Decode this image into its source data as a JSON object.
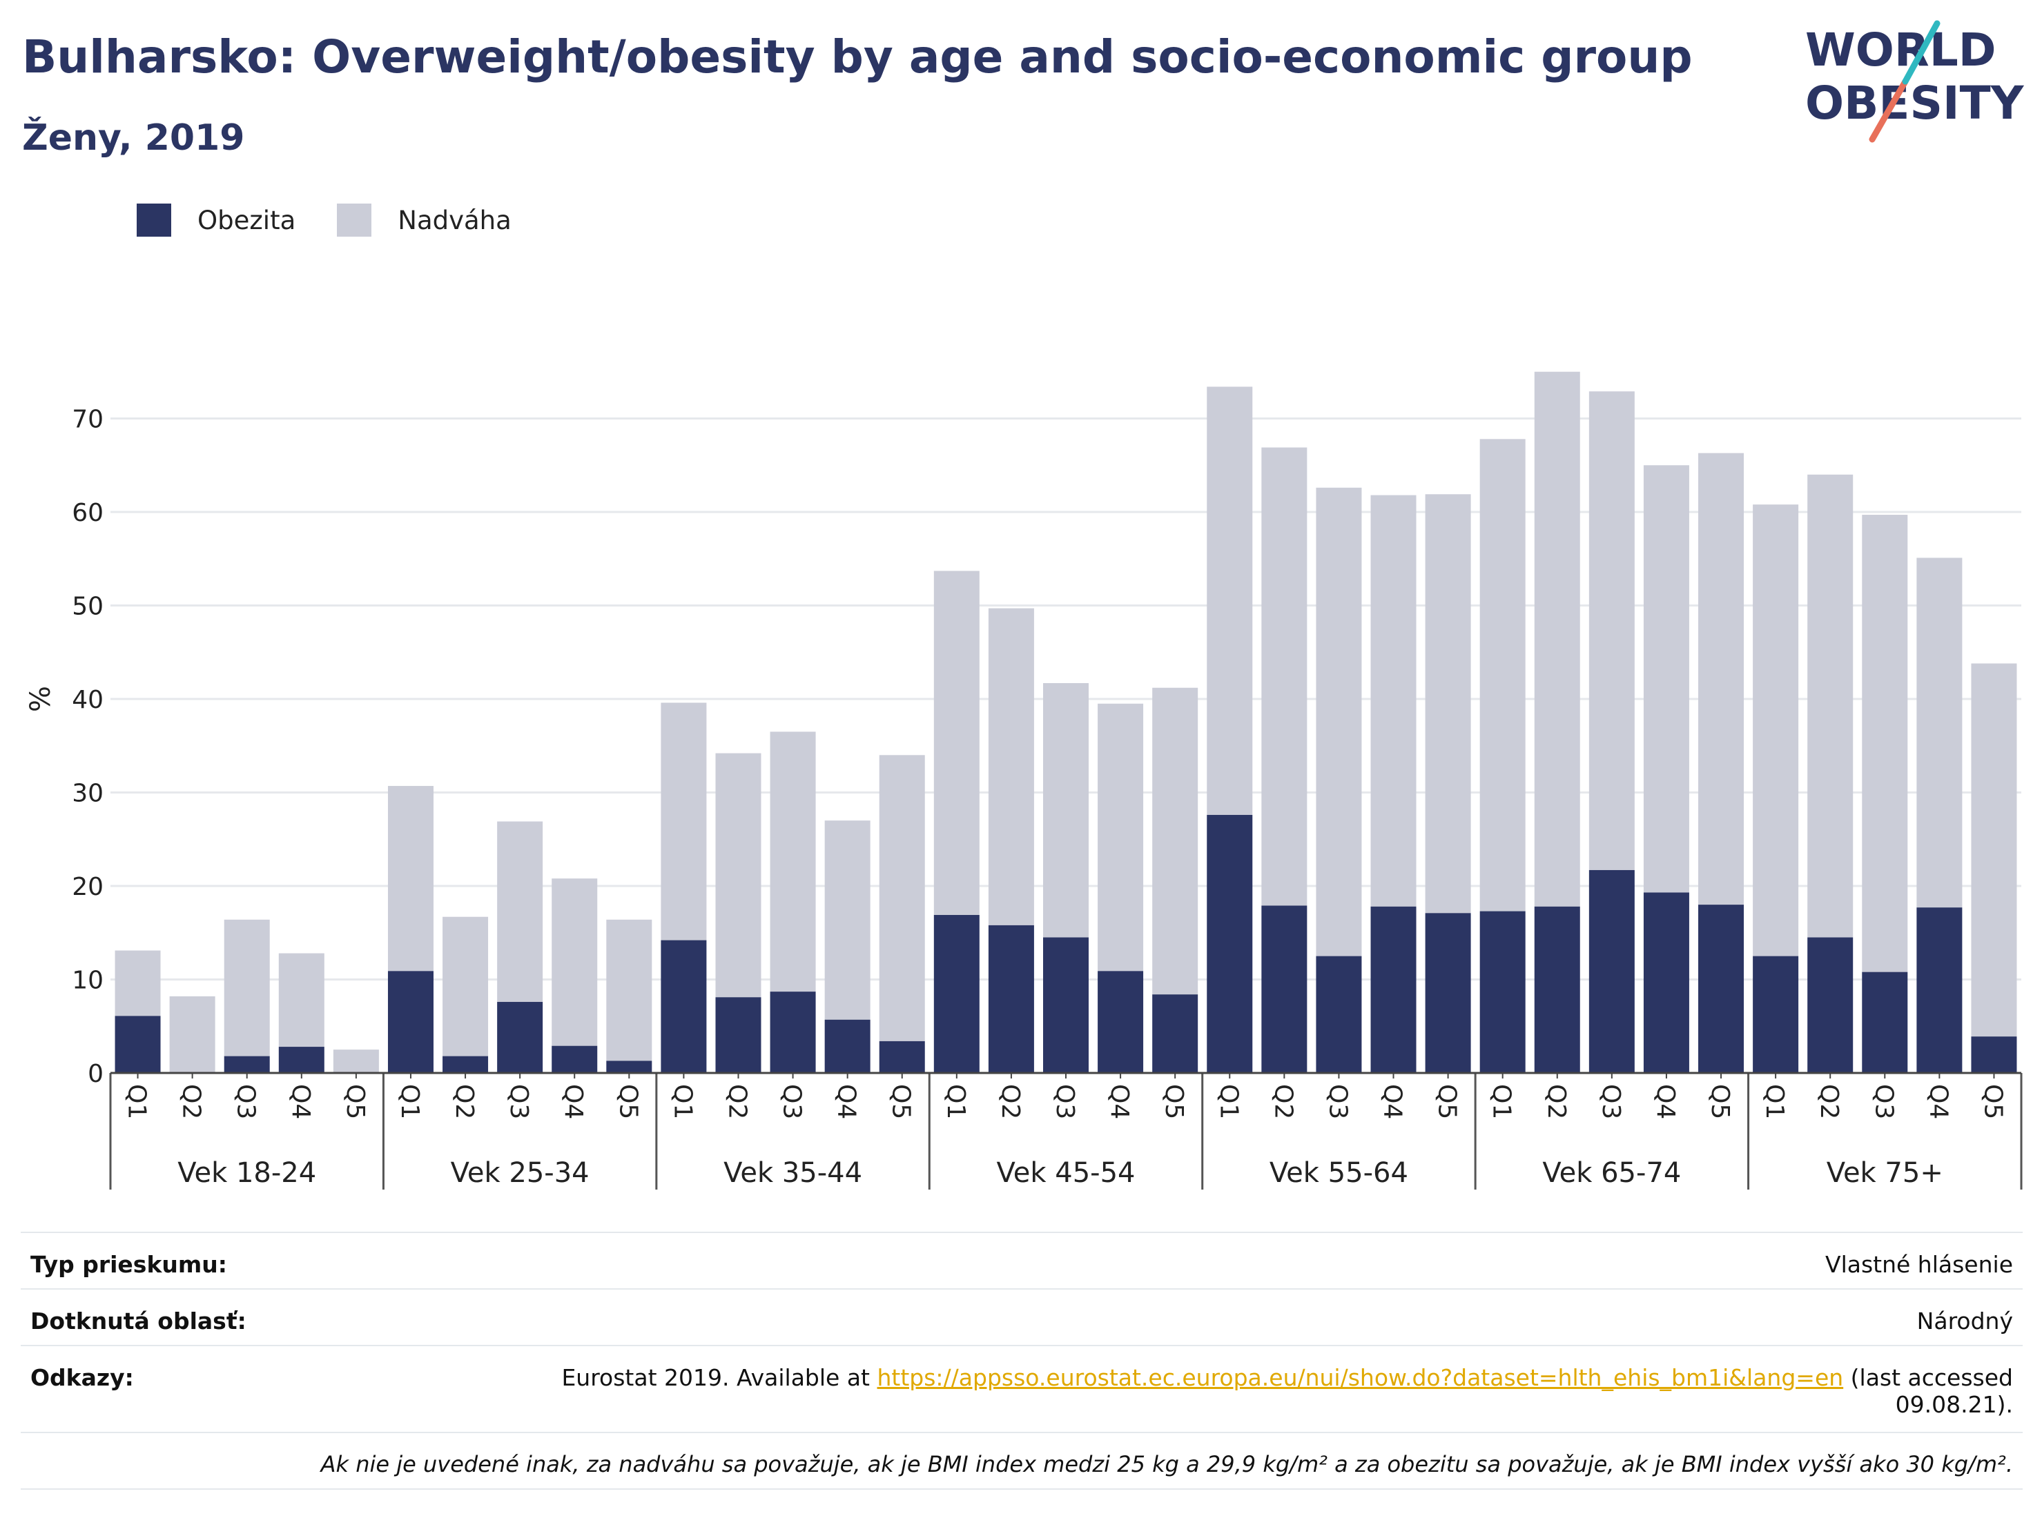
{
  "title": "Bulharsko: Overweight/obesity by age and socio-economic group",
  "subtitle": "Ženy, 2019",
  "logo": {
    "line1": "WORLD",
    "line2": "OBESITY"
  },
  "colors": {
    "obesity": "#2b3563",
    "overweight": "#cbcdd8",
    "accent_teal": "#2fb8c0",
    "accent_coral": "#e8705a",
    "link": "#e0a800"
  },
  "legend": [
    {
      "label": "Obezita",
      "color": "#2b3563"
    },
    {
      "label": "Nadváha",
      "color": "#cbcdd8"
    }
  ],
  "chart_data": {
    "type": "bar",
    "stacked": true,
    "ylabel": "%",
    "ylim": [
      0,
      80
    ],
    "yticks": [
      0,
      10,
      20,
      30,
      40,
      50,
      60,
      70
    ],
    "grid": true,
    "legend_position": "top-left",
    "groups": [
      "Vek 18-24",
      "Vek 25-34",
      "Vek 35-44",
      "Vek 45-54",
      "Vek 55-64",
      "Vek 65-74",
      "Vek 75+"
    ],
    "subcategories": [
      "Q1",
      "Q2",
      "Q3",
      "Q4",
      "Q5"
    ],
    "series": [
      {
        "name": "Obezita",
        "values": [
          [
            6.1,
            0,
            1.8,
            2.8,
            0
          ],
          [
            10.9,
            1.8,
            7.6,
            2.9,
            1.3
          ],
          [
            14.2,
            8.1,
            8.7,
            5.7,
            3.4
          ],
          [
            16.9,
            15.8,
            14.5,
            10.9,
            8.4
          ],
          [
            27.6,
            17.9,
            12.5,
            17.8,
            17.1
          ],
          [
            17.3,
            17.8,
            21.7,
            19.3,
            18.0
          ],
          [
            12.5,
            14.5,
            10.8,
            17.7,
            3.9
          ]
        ]
      },
      {
        "name": "Nadváha",
        "values": [
          [
            7.0,
            8.2,
            14.6,
            10.0,
            2.5
          ],
          [
            19.8,
            14.9,
            19.3,
            17.9,
            15.1
          ],
          [
            25.4,
            26.1,
            27.8,
            21.3,
            30.6
          ],
          [
            36.8,
            33.9,
            27.2,
            28.6,
            32.8
          ],
          [
            45.8,
            49.0,
            50.1,
            44.0,
            44.8
          ],
          [
            50.5,
            57.2,
            51.2,
            45.7,
            48.3
          ],
          [
            48.3,
            49.5,
            48.9,
            37.4,
            39.9
          ]
        ]
      }
    ]
  },
  "footer": {
    "rows": [
      {
        "label": "Typ prieskumu:",
        "value": "Vlastné hlásenie"
      },
      {
        "label": "Dotknutá oblasť:",
        "value": "Národný"
      }
    ],
    "ref_label": "Odkazy:",
    "ref_prefix": "Eurostat 2019. Available at ",
    "ref_link": "https://appsso.eurostat.ec.europa.eu/nui/show.do?dataset=hlth_ehis_bm1i&lang=en",
    "ref_suffix": " (last accessed",
    "ref_date": "09.08.21).",
    "note": "Ak nie je uvedené inak, za nadváhu sa považuje, ak je BMI index medzi 25 kg a 29,9 kg/m² a za obezitu sa považuje, ak je BMI index vyšší ako 30 kg/m²."
  }
}
